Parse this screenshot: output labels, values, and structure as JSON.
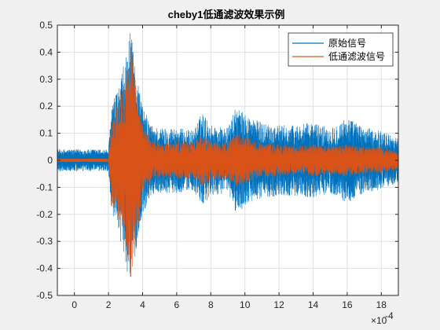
{
  "chart_data": {
    "type": "line",
    "title": "cheby1低通滤波效果示例",
    "xlabel": "",
    "ylabel": "",
    "x_exponent_label": "×10",
    "x_exponent_power": "-4",
    "xlim": [
      -0.0001,
      0.0019
    ],
    "ylim": [
      -0.5,
      0.5
    ],
    "x_ticks": [
      0,
      0.0002,
      0.0004,
      0.0006,
      0.0008,
      0.001,
      0.0012,
      0.0014,
      0.0016,
      0.0018
    ],
    "x_tick_labels": [
      "0",
      "2",
      "4",
      "6",
      "8",
      "10",
      "12",
      "14",
      "16",
      "18"
    ],
    "y_ticks": [
      0.5,
      0.4,
      0.3,
      0.2,
      0.1,
      0,
      -0.1,
      -0.2,
      -0.3,
      -0.4,
      -0.5
    ],
    "y_tick_labels": [
      "0.5",
      "0.4",
      "0.3",
      "0.2",
      "0.1",
      "0",
      "-0.1",
      "-0.2",
      "-0.3",
      "-0.4",
      "-0.5"
    ],
    "grid": true,
    "legend_position": "top-right",
    "series": [
      {
        "name": "原始信号",
        "color": "#0072BD",
        "x": [
          -0.0001,
          0,
          0.0001,
          0.0002,
          0.00022,
          0.00025,
          0.0003,
          0.00033,
          0.00035,
          0.0004,
          0.00045,
          0.0005,
          0.0006,
          0.0007,
          0.00075,
          0.0008,
          0.0009,
          0.00095,
          0.001,
          0.0011,
          0.0012,
          0.0013,
          0.0014,
          0.0015,
          0.0016,
          0.0017,
          0.0018,
          0.0019
        ],
        "envelope": [
          0.04,
          0.04,
          0.04,
          0.04,
          0.22,
          0.25,
          0.38,
          0.48,
          0.38,
          0.2,
          0.13,
          0.12,
          0.12,
          0.11,
          0.18,
          0.13,
          0.12,
          0.2,
          0.17,
          0.14,
          0.13,
          0.13,
          0.14,
          0.12,
          0.16,
          0.12,
          0.11,
          0.08
        ]
      },
      {
        "name": "低通滤波信号",
        "color": "#D95319",
        "x": [
          -0.0001,
          0,
          0.0001,
          0.0002,
          0.00022,
          0.00025,
          0.0003,
          0.00033,
          0.00035,
          0.0004,
          0.00045,
          0.0005,
          0.0006,
          0.0007,
          0.00075,
          0.0008,
          0.0009,
          0.00095,
          0.001,
          0.0011,
          0.0012,
          0.0013,
          0.0014,
          0.0015,
          0.0016,
          0.0017,
          0.0018,
          0.0019
        ],
        "envelope": [
          0.006,
          0.006,
          0.006,
          0.006,
          0.17,
          0.2,
          0.3,
          0.45,
          0.35,
          0.13,
          0.07,
          0.06,
          0.07,
          0.07,
          0.1,
          0.07,
          0.07,
          0.1,
          0.09,
          0.06,
          0.06,
          0.05,
          0.06,
          0.05,
          0.06,
          0.05,
          0.05,
          0.03
        ]
      }
    ]
  }
}
